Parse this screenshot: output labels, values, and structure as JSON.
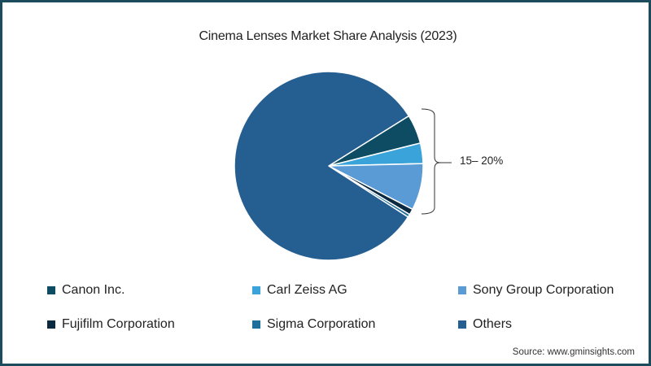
{
  "chart_data": {
    "type": "pie",
    "title": "Cinema Lenses Market Share Analysis (2023)",
    "categories": [
      "Canon Inc.",
      "Carl Zeiss AG",
      "Sony Group Corporation",
      "Fujifilm Corporation",
      "Sigma Corporation",
      "Others"
    ],
    "values": [
      5,
      3.5,
      8,
      1,
      0.5,
      82
    ],
    "colors": [
      "#0d4c63",
      "#3aa3d9",
      "#5b9bd5",
      "#0b2a40",
      "#1f6f9c",
      "#255e91"
    ],
    "annotation": "15– 20%",
    "annotation_covers": [
      "Canon Inc.",
      "Carl Zeiss AG",
      "Sony Group Corporation",
      "Fujifilm Corporation",
      "Sigma Corporation"
    ],
    "legend_position": "bottom",
    "source": "Source: www.gminsights.com"
  },
  "title": "Cinema Lenses Market Share Analysis (2023)",
  "bracket_label": "15– 20%",
  "legend": [
    {
      "label": "Canon Inc.",
      "color": "#0d4c63"
    },
    {
      "label": "Carl Zeiss AG",
      "color": "#3aa3d9"
    },
    {
      "label": "Sony Group Corporation",
      "color": "#5b9bd5"
    },
    {
      "label": "Fujifilm Corporation",
      "color": "#0b2a40"
    },
    {
      "label": "Sigma Corporation",
      "color": "#1f6f9c"
    },
    {
      "label": "Others",
      "color": "#255e91"
    }
  ],
  "source": "Source: www.gminsights.com"
}
